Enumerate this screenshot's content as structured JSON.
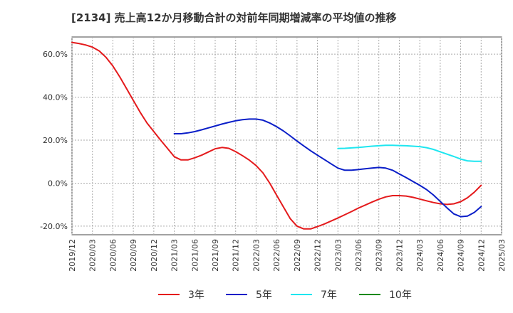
{
  "chart_data": {
    "type": "line",
    "title": "[2134]  売上高12か月移動合計の対前年同期増減率の平均値の推移",
    "xlabel": "",
    "ylabel": "",
    "ylim": [
      -24,
      68
    ],
    "yticks": [
      -20,
      0,
      20,
      40,
      60
    ],
    "ytick_labels": [
      "-20.0%",
      "0.0%",
      "20.0%",
      "40.0%",
      "60.0%"
    ],
    "x_range": [
      "2019/12",
      "2025/03"
    ],
    "xtick_labels": [
      "2019/12",
      "2020/03",
      "2020/06",
      "2020/09",
      "2020/12",
      "2021/03",
      "2021/06",
      "2021/09",
      "2021/12",
      "2022/03",
      "2022/06",
      "2022/09",
      "2022/12",
      "2023/03",
      "2023/06",
      "2023/09",
      "2023/12",
      "2024/03",
      "2024/06",
      "2024/09",
      "2024/12",
      "2025/03"
    ],
    "grid": true,
    "legend_position": "bottom",
    "series": [
      {
        "name": "3年",
        "color": "#e41a1c",
        "points": [
          [
            "2019/12",
            65.5
          ],
          [
            "2020/01",
            65
          ],
          [
            "2020/02",
            64.3
          ],
          [
            "2020/03",
            63.3
          ],
          [
            "2020/04",
            61.5
          ],
          [
            "2020/05",
            58.5
          ],
          [
            "2020/06",
            54.5
          ],
          [
            "2020/07",
            49.5
          ],
          [
            "2020/08",
            44
          ],
          [
            "2020/09",
            38.5
          ],
          [
            "2020/10",
            33
          ],
          [
            "2020/11",
            28
          ],
          [
            "2020/12",
            24
          ],
          [
            "2021/01",
            20
          ],
          [
            "2021/02",
            16.2
          ],
          [
            "2021/03",
            12.3
          ],
          [
            "2021/04",
            10.8
          ],
          [
            "2021/05",
            10.8
          ],
          [
            "2021/06",
            11.8
          ],
          [
            "2021/07",
            13
          ],
          [
            "2021/08",
            14.5
          ],
          [
            "2021/09",
            16
          ],
          [
            "2021/10",
            16.6
          ],
          [
            "2021/11",
            16.2
          ],
          [
            "2021/12",
            14.7
          ],
          [
            "2022/01",
            12.8
          ],
          [
            "2022/02",
            10.7
          ],
          [
            "2022/03",
            8.2
          ],
          [
            "2022/04",
            4.8
          ],
          [
            "2022/05",
            0
          ],
          [
            "2022/06",
            -5.5
          ],
          [
            "2022/07",
            -11
          ],
          [
            "2022/08",
            -16.5
          ],
          [
            "2022/09",
            -20
          ],
          [
            "2022/10",
            -21.3
          ],
          [
            "2022/11",
            -21.3
          ],
          [
            "2022/12",
            -20.2
          ],
          [
            "2023/01",
            -19
          ],
          [
            "2023/02",
            -17.6
          ],
          [
            "2023/03",
            -16.2
          ],
          [
            "2023/04",
            -14.7
          ],
          [
            "2023/05",
            -13.2
          ],
          [
            "2023/06",
            -11.6
          ],
          [
            "2023/07",
            -10.2
          ],
          [
            "2023/08",
            -8.8
          ],
          [
            "2023/09",
            -7.5
          ],
          [
            "2023/10",
            -6.4
          ],
          [
            "2023/11",
            -5.8
          ],
          [
            "2023/12",
            -5.8
          ],
          [
            "2024/01",
            -6
          ],
          [
            "2024/02",
            -6.6
          ],
          [
            "2024/03",
            -7.4
          ],
          [
            "2024/04",
            -8.2
          ],
          [
            "2024/05",
            -9
          ],
          [
            "2024/06",
            -9.6
          ],
          [
            "2024/07",
            -9.9
          ],
          [
            "2024/08",
            -9.6
          ],
          [
            "2024/09",
            -8.6
          ],
          [
            "2024/10",
            -6.8
          ],
          [
            "2024/11",
            -4.2
          ],
          [
            "2024/12",
            -1
          ]
        ]
      },
      {
        "name": "5年",
        "color": "#0a1ec8",
        "points": [
          [
            "2021/03",
            23
          ],
          [
            "2021/04",
            23
          ],
          [
            "2021/05",
            23.4
          ],
          [
            "2021/06",
            24
          ],
          [
            "2021/07",
            24.8
          ],
          [
            "2021/08",
            25.7
          ],
          [
            "2021/09",
            26.6
          ],
          [
            "2021/10",
            27.5
          ],
          [
            "2021/11",
            28.3
          ],
          [
            "2021/12",
            29
          ],
          [
            "2022/01",
            29.5
          ],
          [
            "2022/02",
            29.8
          ],
          [
            "2022/03",
            29.8
          ],
          [
            "2022/04",
            29.3
          ],
          [
            "2022/05",
            28
          ],
          [
            "2022/06",
            26.3
          ],
          [
            "2022/07",
            24.3
          ],
          [
            "2022/08",
            22
          ],
          [
            "2022/09",
            19.6
          ],
          [
            "2022/10",
            17.3
          ],
          [
            "2022/11",
            15.1
          ],
          [
            "2022/12",
            13
          ],
          [
            "2023/01",
            11
          ],
          [
            "2023/02",
            9
          ],
          [
            "2023/03",
            7
          ],
          [
            "2023/04",
            6
          ],
          [
            "2023/05",
            6
          ],
          [
            "2023/06",
            6.3
          ],
          [
            "2023/07",
            6.7
          ],
          [
            "2023/08",
            7
          ],
          [
            "2023/09",
            7.3
          ],
          [
            "2023/10",
            7
          ],
          [
            "2023/11",
            6
          ],
          [
            "2023/12",
            4.3
          ],
          [
            "2024/01",
            2.6
          ],
          [
            "2024/02",
            0.8
          ],
          [
            "2024/03",
            -1
          ],
          [
            "2024/04",
            -3
          ],
          [
            "2024/05",
            -5.5
          ],
          [
            "2024/06",
            -8.5
          ],
          [
            "2024/07",
            -11.5
          ],
          [
            "2024/08",
            -14.3
          ],
          [
            "2024/09",
            -15.6
          ],
          [
            "2024/10",
            -15.3
          ],
          [
            "2024/11",
            -13.6
          ],
          [
            "2024/12",
            -10.9
          ]
        ]
      },
      {
        "name": "7年",
        "color": "#1ee6f0",
        "points": [
          [
            "2023/03",
            16.1
          ],
          [
            "2023/04",
            16.2
          ],
          [
            "2023/05",
            16.4
          ],
          [
            "2023/06",
            16.6
          ],
          [
            "2023/07",
            16.9
          ],
          [
            "2023/08",
            17.2
          ],
          [
            "2023/09",
            17.4
          ],
          [
            "2023/10",
            17.6
          ],
          [
            "2023/11",
            17.6
          ],
          [
            "2023/12",
            17.5
          ],
          [
            "2024/01",
            17.4
          ],
          [
            "2024/02",
            17.2
          ],
          [
            "2024/03",
            17
          ],
          [
            "2024/04",
            16.5
          ],
          [
            "2024/05",
            15.7
          ],
          [
            "2024/06",
            14.6
          ],
          [
            "2024/07",
            13.5
          ],
          [
            "2024/08",
            12.4
          ],
          [
            "2024/09",
            11.2
          ],
          [
            "2024/10",
            10.4
          ],
          [
            "2024/11",
            10.2
          ],
          [
            "2024/12",
            10.2
          ]
        ]
      },
      {
        "name": "10年",
        "color": "#1a8a1a",
        "points": []
      }
    ]
  }
}
